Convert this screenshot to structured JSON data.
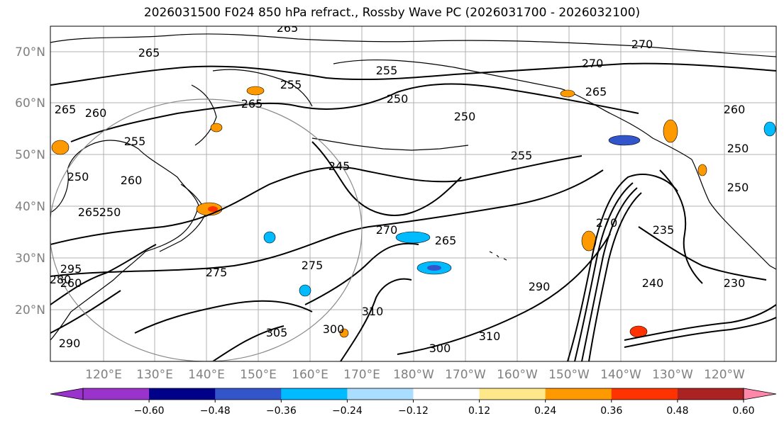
{
  "title": "2026031500 F024 850 hPa refract., Rossby Wave PC (2026031700 - 2026032100)",
  "lat_labels": [
    "70°N",
    "60°N",
    "50°N",
    "40°N",
    "30°N",
    "20°N"
  ],
  "lon_labels": [
    "120°E",
    "130°E",
    "140°E",
    "150°E",
    "160°E",
    "170°E",
    "180°W",
    "170°W",
    "160°W",
    "150°W",
    "140°W",
    "130°W",
    "120°W"
  ],
  "colorbar": {
    "colors": [
      "#9933cc",
      "#000088",
      "#3355cc",
      "#00bbff",
      "#aaddff",
      "#ffffff",
      "#ffe88a",
      "#ff9900",
      "#ff3300",
      "#aa2222",
      "#ff88aa"
    ],
    "ticks": [
      "−0.60",
      "−0.48",
      "−0.36",
      "−0.24",
      "−0.12",
      "0.12",
      "0.24",
      "0.36",
      "0.48",
      "0.60"
    ]
  },
  "contour_labels": [
    "265",
    "265",
    "260",
    "265",
    "255",
    "255",
    "265",
    "250",
    "250",
    "245",
    "255",
    "260",
    "265",
    "270",
    "270",
    "265",
    "270",
    "275",
    "275",
    "250",
    "250",
    "260",
    "300",
    "310",
    "290",
    "280",
    "305",
    "300",
    "310",
    "255",
    "260",
    "250",
    "265",
    "270",
    "235",
    "240",
    "230",
    "250",
    "295",
    "290"
  ]
}
